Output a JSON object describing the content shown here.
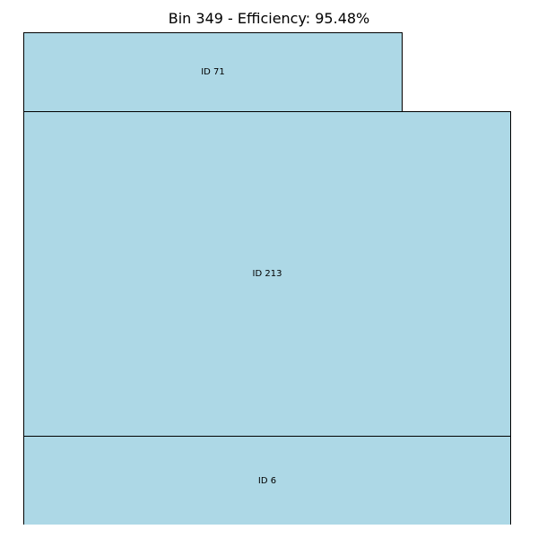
{
  "title": "Bin 349 - Efficiency: 95.48%",
  "colors": {
    "fill": "#add8e6",
    "stroke": "#000000",
    "background": "#ffffff"
  },
  "items": [
    {
      "label": "ID 71"
    },
    {
      "label": "ID 213"
    },
    {
      "label": "ID 6"
    }
  ]
}
